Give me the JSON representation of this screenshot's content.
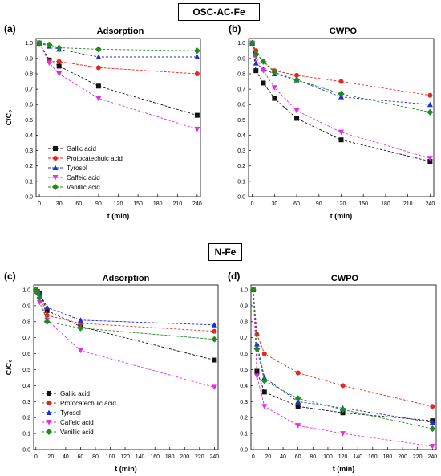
{
  "sections": [
    {
      "title": "OSC-AC-Fe"
    },
    {
      "title": "N-Fe"
    }
  ],
  "legend_labels": [
    "Gallic acid",
    "Protocatechuic acid",
    "Tyrosol",
    "Caffeic acid",
    "Vanillic acid"
  ],
  "colors": {
    "Gallic acid": "#111111",
    "Protocatechuic acid": "#e8241f",
    "Tyrosol": "#1f2bd6",
    "Caffeic acid": "#e62be8",
    "Vanillic acid": "#1f8a1f"
  },
  "chart_data": [
    {
      "type": "line",
      "panel_label": "(a)",
      "title": "Adsorption",
      "xlabel": "t (min)",
      "ylabel": "C/C₀",
      "xticks": [
        0,
        30,
        60,
        90,
        120,
        150,
        180,
        210,
        240
      ],
      "yticks": [
        0,
        0.1,
        0.2,
        0.3,
        0.4,
        0.5,
        0.6,
        0.7,
        0.8,
        0.9,
        1.0
      ],
      "xlim": [
        -5,
        245
      ],
      "ylim": [
        0,
        1.03
      ],
      "legend": "bottom-left",
      "series": [
        {
          "name": "Gallic acid",
          "x": [
            0,
            15,
            30,
            90,
            240
          ],
          "y": [
            1.0,
            0.89,
            0.85,
            0.72,
            0.53
          ]
        },
        {
          "name": "Protocatechuic acid",
          "x": [
            0,
            15,
            30,
            90,
            240
          ],
          "y": [
            1.0,
            0.88,
            0.88,
            0.84,
            0.8
          ]
        },
        {
          "name": "Tyrosol",
          "x": [
            0,
            15,
            30,
            90,
            240
          ],
          "y": [
            1.0,
            0.98,
            0.96,
            0.91,
            0.91
          ]
        },
        {
          "name": "Caffeic acid",
          "x": [
            0,
            15,
            30,
            90,
            240
          ],
          "y": [
            1.0,
            0.87,
            0.8,
            0.64,
            0.44
          ]
        },
        {
          "name": "Vanillic acid",
          "x": [
            0,
            15,
            30,
            90,
            240
          ],
          "y": [
            1.0,
            0.99,
            0.97,
            0.96,
            0.95
          ]
        }
      ]
    },
    {
      "type": "line",
      "panel_label": "(b)",
      "title": "CWPO",
      "xlabel": "t (min)",
      "ylabel": "",
      "xticks": [
        0,
        30,
        60,
        90,
        120,
        150,
        180,
        210,
        240
      ],
      "yticks": [
        0,
        0.1,
        0.2,
        0.3,
        0.4,
        0.5,
        0.6,
        0.7,
        0.8,
        0.9,
        1.0
      ],
      "xlim": [
        -5,
        245
      ],
      "ylim": [
        0,
        1.03
      ],
      "legend": "none",
      "series": [
        {
          "name": "Gallic acid",
          "x": [
            0,
            5,
            15,
            30,
            60,
            120,
            240
          ],
          "y": [
            1.0,
            0.82,
            0.74,
            0.64,
            0.51,
            0.37,
            0.23
          ]
        },
        {
          "name": "Protocatechuic acid",
          "x": [
            0,
            5,
            15,
            30,
            60,
            120,
            240
          ],
          "y": [
            1.0,
            0.95,
            0.88,
            0.82,
            0.79,
            0.75,
            0.66
          ]
        },
        {
          "name": "Tyrosol",
          "x": [
            0,
            5,
            15,
            30,
            60,
            120,
            240
          ],
          "y": [
            1.0,
            0.87,
            0.83,
            0.8,
            0.76,
            0.65,
            0.6
          ]
        },
        {
          "name": "Caffeic acid",
          "x": [
            0,
            5,
            15,
            30,
            60,
            120,
            240
          ],
          "y": [
            1.0,
            0.91,
            0.82,
            0.71,
            0.56,
            0.42,
            0.25
          ]
        },
        {
          "name": "Vanillic acid",
          "x": [
            0,
            5,
            15,
            30,
            60,
            120,
            240
          ],
          "y": [
            1.0,
            0.93,
            0.88,
            0.81,
            0.76,
            0.67,
            0.55
          ]
        }
      ]
    },
    {
      "type": "line",
      "panel_label": "(c)",
      "title": "Adsorption",
      "xlabel": "t (min)",
      "ylabel": "C/C₀",
      "xticks": [
        0,
        20,
        40,
        60,
        80,
        100,
        120,
        140,
        160,
        180,
        200,
        220,
        240
      ],
      "yticks": [
        0.0,
        0.1,
        0.2,
        0.3,
        0.4,
        0.5,
        0.6,
        0.7,
        0.8,
        0.9,
        1.0
      ],
      "xlim": [
        -3,
        245
      ],
      "ylim": [
        0,
        1.03
      ],
      "legend": "bottom-left",
      "series": [
        {
          "name": "Gallic acid",
          "x": [
            0,
            2,
            5,
            15,
            60,
            240
          ],
          "y": [
            1.0,
            0.99,
            0.98,
            0.87,
            0.77,
            0.56
          ]
        },
        {
          "name": "Protocatechuic acid",
          "x": [
            0,
            2,
            5,
            15,
            60,
            240
          ],
          "y": [
            1.0,
            0.99,
            0.97,
            0.84,
            0.79,
            0.74
          ]
        },
        {
          "name": "Tyrosol",
          "x": [
            0,
            2,
            5,
            15,
            60,
            240
          ],
          "y": [
            1.0,
            0.99,
            0.98,
            0.89,
            0.81,
            0.78
          ]
        },
        {
          "name": "Caffeic acid",
          "x": [
            0,
            2,
            5,
            15,
            60,
            240
          ],
          "y": [
            1.0,
            0.98,
            0.92,
            0.81,
            0.62,
            0.39
          ]
        },
        {
          "name": "Vanillic acid",
          "x": [
            0,
            2,
            5,
            15,
            60,
            240
          ],
          "y": [
            1.0,
            0.98,
            0.95,
            0.8,
            0.76,
            0.69
          ]
        }
      ]
    },
    {
      "type": "line",
      "panel_label": "(d)",
      "title": "CWPO",
      "xlabel": "t (min)",
      "ylabel": "",
      "xticks": [
        0,
        20,
        40,
        60,
        80,
        100,
        120,
        140,
        160,
        180,
        200,
        220,
        240
      ],
      "yticks": [
        0.0,
        0.1,
        0.2,
        0.3,
        0.4,
        0.5,
        0.6,
        0.7,
        0.8,
        0.9,
        1.0
      ],
      "xlim": [
        -3,
        245
      ],
      "ylim": [
        0,
        1.03
      ],
      "legend": "none",
      "series": [
        {
          "name": "Gallic acid",
          "x": [
            0,
            5,
            15,
            60,
            120,
            240
          ],
          "y": [
            1.0,
            0.49,
            0.36,
            0.27,
            0.23,
            0.18
          ]
        },
        {
          "name": "Protocatechuic acid",
          "x": [
            0,
            5,
            15,
            60,
            120,
            240
          ],
          "y": [
            1.0,
            0.72,
            0.6,
            0.48,
            0.4,
            0.27
          ]
        },
        {
          "name": "Tyrosol",
          "x": [
            0,
            5,
            15,
            60,
            120,
            240
          ],
          "y": [
            1.0,
            0.66,
            0.45,
            0.3,
            0.26,
            0.17
          ]
        },
        {
          "name": "Caffeic acid",
          "x": [
            0,
            5,
            15,
            60,
            120,
            240
          ],
          "y": [
            1.0,
            0.46,
            0.27,
            0.15,
            0.1,
            0.02
          ]
        },
        {
          "name": "Vanillic acid",
          "x": [
            0,
            5,
            15,
            60,
            120,
            240
          ],
          "y": [
            1.0,
            0.63,
            0.43,
            0.32,
            0.25,
            0.13
          ]
        }
      ]
    }
  ]
}
